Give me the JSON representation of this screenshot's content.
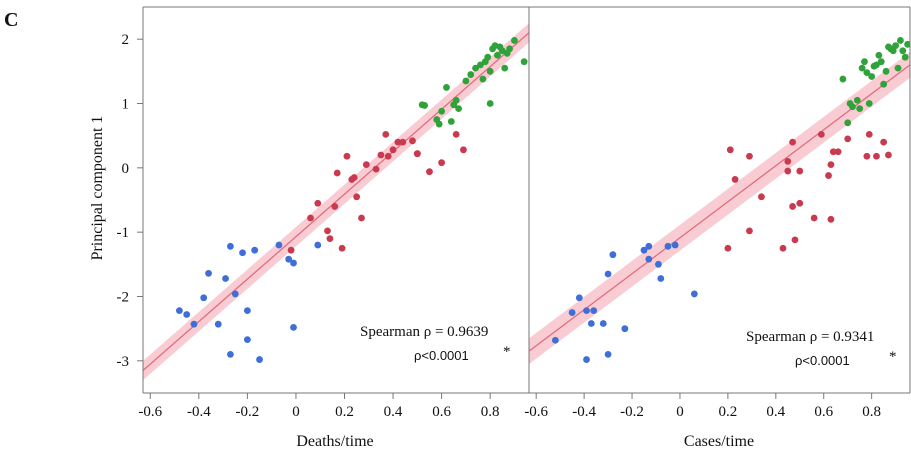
{
  "panel_label": "C",
  "colors": {
    "blue": "#3f6fd6",
    "red": "#c93a4f",
    "green": "#2fa23a",
    "fit_line": "#e06878",
    "band": "#f7b9c4",
    "axis": "#777777"
  },
  "chart_data": [
    {
      "type": "scatter",
      "xlabel": "Deaths/time",
      "ylabel": "Principal component 1",
      "xlim": [
        -0.63,
        0.96
      ],
      "ylim": [
        -3.5,
        2.5
      ],
      "x_ticks": [
        -0.6,
        -0.4,
        -0.2,
        0,
        0.2,
        0.4,
        0.6,
        0.8
      ],
      "x_tick_labels": [
        "-0.6",
        "-0.4",
        "-0.2",
        "0",
        "0.2",
        "0.4",
        "0.6",
        "0.8"
      ],
      "y_ticks": [
        2,
        1,
        0,
        -1,
        -2,
        -3
      ],
      "y_tick_labels": [
        "2",
        "1",
        "0",
        "-1",
        "-2",
        "-3"
      ],
      "fit": {
        "x0": -0.63,
        "y0": -3.15,
        "x1": 0.96,
        "y1": 2.1,
        "band_halfwidth": 0.15
      },
      "annotation": {
        "stat": "Spearman ρ = 0.9639",
        "p": "ρ<0.0001",
        "star": "*"
      },
      "series": [
        {
          "color_key": "blue",
          "points": [
            [
              -0.48,
              -2.22
            ],
            [
              -0.45,
              -2.28
            ],
            [
              -0.42,
              -2.43
            ],
            [
              -0.38,
              -2.02
            ],
            [
              -0.36,
              -1.64
            ],
            [
              -0.32,
              -2.43
            ],
            [
              -0.29,
              -1.72
            ],
            [
              -0.27,
              -1.22
            ],
            [
              -0.27,
              -2.9
            ],
            [
              -0.25,
              -1.96
            ],
            [
              -0.22,
              -1.32
            ],
            [
              -0.2,
              -2.22
            ],
            [
              -0.2,
              -2.67
            ],
            [
              -0.17,
              -1.28
            ],
            [
              -0.15,
              -2.98
            ],
            [
              -0.07,
              -1.2
            ],
            [
              -0.03,
              -1.42
            ],
            [
              -0.01,
              -1.48
            ],
            [
              -0.01,
              -2.48
            ],
            [
              0.09,
              -1.2
            ]
          ]
        },
        {
          "color_key": "red",
          "points": [
            [
              -0.02,
              -1.28
            ],
            [
              0.06,
              -0.78
            ],
            [
              0.09,
              -0.55
            ],
            [
              0.13,
              -0.98
            ],
            [
              0.14,
              -1.1
            ],
            [
              0.16,
              -0.6
            ],
            [
              0.17,
              -0.08
            ],
            [
              0.19,
              -1.25
            ],
            [
              0.21,
              0.18
            ],
            [
              0.23,
              -0.18
            ],
            [
              0.24,
              -0.15
            ],
            [
              0.25,
              -0.45
            ],
            [
              0.27,
              -0.78
            ],
            [
              0.29,
              0.05
            ],
            [
              0.33,
              -0.02
            ],
            [
              0.35,
              0.2
            ],
            [
              0.37,
              0.52
            ],
            [
              0.38,
              0.18
            ],
            [
              0.4,
              0.28
            ],
            [
              0.42,
              0.4
            ],
            [
              0.44,
              0.4
            ],
            [
              0.48,
              0.42
            ],
            [
              0.5,
              0.22
            ],
            [
              0.5,
              0.22
            ],
            [
              0.55,
              -0.06
            ],
            [
              0.6,
              0.08
            ],
            [
              0.66,
              0.52
            ],
            [
              0.69,
              0.28
            ]
          ]
        },
        {
          "color_key": "green",
          "points": [
            [
              0.52,
              0.98
            ],
            [
              0.53,
              0.97
            ],
            [
              0.58,
              0.75
            ],
            [
              0.59,
              0.68
            ],
            [
              0.6,
              0.88
            ],
            [
              0.62,
              1.25
            ],
            [
              0.64,
              0.72
            ],
            [
              0.65,
              0.98
            ],
            [
              0.66,
              1.05
            ],
            [
              0.67,
              0.92
            ],
            [
              0.7,
              1.35
            ],
            [
              0.72,
              1.45
            ],
            [
              0.74,
              1.55
            ],
            [
              0.76,
              1.6
            ],
            [
              0.77,
              1.38
            ],
            [
              0.78,
              1.65
            ],
            [
              0.79,
              1.72
            ],
            [
              0.8,
              1.5
            ],
            [
              0.8,
              1.0
            ],
            [
              0.81,
              1.85
            ],
            [
              0.82,
              1.9
            ],
            [
              0.83,
              1.75
            ],
            [
              0.84,
              1.88
            ],
            [
              0.85,
              1.82
            ],
            [
              0.86,
              1.55
            ],
            [
              0.87,
              1.78
            ],
            [
              0.88,
              1.85
            ],
            [
              0.9,
              1.98
            ],
            [
              0.94,
              1.65
            ]
          ]
        }
      ]
    },
    {
      "type": "scatter",
      "xlabel": "Cases/time",
      "ylabel": "",
      "xlim": [
        -0.63,
        0.96
      ],
      "ylim": [
        -3.5,
        2.5
      ],
      "x_ticks": [
        -0.6,
        -0.4,
        -0.2,
        0,
        0.2,
        0.4,
        0.6,
        0.8
      ],
      "x_tick_labels": [
        "-0.6",
        "-0.4",
        "-0.2",
        "0",
        "0.2",
        "0.4",
        "0.6",
        "0.8"
      ],
      "fit": {
        "x0": -0.63,
        "y0": -2.85,
        "x1": 0.96,
        "y1": 1.6,
        "band_halfwidth": 0.2
      },
      "annotation": {
        "stat": "Spearman ρ = 0.9341",
        "p": "ρ<0.0001",
        "star": "*"
      },
      "series": [
        {
          "color_key": "blue",
          "points": [
            [
              -0.52,
              -2.68
            ],
            [
              -0.45,
              -2.25
            ],
            [
              -0.42,
              -2.02
            ],
            [
              -0.39,
              -2.22
            ],
            [
              -0.39,
              -2.98
            ],
            [
              -0.37,
              -2.42
            ],
            [
              -0.36,
              -2.22
            ],
            [
              -0.32,
              -2.42
            ],
            [
              -0.3,
              -1.65
            ],
            [
              -0.3,
              -2.9
            ],
            [
              -0.28,
              -1.35
            ],
            [
              -0.23,
              -2.5
            ],
            [
              -0.15,
              -1.28
            ],
            [
              -0.13,
              -1.22
            ],
            [
              -0.13,
              -1.42
            ],
            [
              -0.09,
              -1.5
            ],
            [
              -0.08,
              -1.72
            ],
            [
              -0.05,
              -1.22
            ],
            [
              -0.02,
              -1.2
            ],
            [
              0.06,
              -1.96
            ]
          ]
        },
        {
          "color_key": "red",
          "points": [
            [
              0.2,
              -1.25
            ],
            [
              0.21,
              0.28
            ],
            [
              0.23,
              -0.18
            ],
            [
              0.29,
              0.18
            ],
            [
              0.29,
              -0.98
            ],
            [
              0.34,
              -0.45
            ],
            [
              0.43,
              -1.25
            ],
            [
              0.45,
              -0.05
            ],
            [
              0.45,
              0.1
            ],
            [
              0.47,
              -0.6
            ],
            [
              0.47,
              0.4
            ],
            [
              0.48,
              -1.12
            ],
            [
              0.5,
              -0.05
            ],
            [
              0.5,
              -0.55
            ],
            [
              0.56,
              -0.78
            ],
            [
              0.59,
              0.52
            ],
            [
              0.62,
              -0.12
            ],
            [
              0.63,
              -0.8
            ],
            [
              0.63,
              0.05
            ],
            [
              0.64,
              0.25
            ],
            [
              0.66,
              0.25
            ],
            [
              0.7,
              0.45
            ],
            [
              0.78,
              0.18
            ],
            [
              0.79,
              0.52
            ],
            [
              0.82,
              0.18
            ],
            [
              0.85,
              0.4
            ],
            [
              0.87,
              0.2
            ]
          ]
        },
        {
          "color_key": "green",
          "points": [
            [
              0.68,
              1.38
            ],
            [
              0.7,
              0.7
            ],
            [
              0.71,
              1.0
            ],
            [
              0.72,
              0.95
            ],
            [
              0.74,
              1.05
            ],
            [
              0.75,
              0.92
            ],
            [
              0.76,
              1.55
            ],
            [
              0.77,
              1.65
            ],
            [
              0.78,
              1.48
            ],
            [
              0.79,
              1.0
            ],
            [
              0.8,
              1.42
            ],
            [
              0.81,
              1.58
            ],
            [
              0.82,
              1.6
            ],
            [
              0.83,
              1.75
            ],
            [
              0.84,
              1.65
            ],
            [
              0.85,
              1.3
            ],
            [
              0.86,
              1.5
            ],
            [
              0.87,
              1.88
            ],
            [
              0.88,
              1.85
            ],
            [
              0.89,
              1.82
            ],
            [
              0.9,
              1.9
            ],
            [
              0.91,
              1.55
            ],
            [
              0.92,
              1.98
            ],
            [
              0.93,
              1.82
            ],
            [
              0.94,
              1.72
            ],
            [
              0.95,
              1.92
            ]
          ]
        }
      ]
    }
  ]
}
